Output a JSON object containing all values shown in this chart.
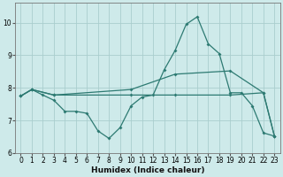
{
  "bg_color": "#ceeaea",
  "line_color": "#2d7a72",
  "grid_color": "#aacece",
  "grid_color_minor": "#c8e4e4",
  "xlabel": "Humidex (Indice chaleur)",
  "xlim": [
    -0.5,
    23.5
  ],
  "ylim": [
    6,
    10.6
  ],
  "yticks": [
    6,
    7,
    8,
    9,
    10
  ],
  "xticks": [
    0,
    1,
    2,
    3,
    4,
    5,
    6,
    7,
    8,
    9,
    10,
    11,
    12,
    13,
    14,
    15,
    16,
    17,
    18,
    19,
    20,
    21,
    22,
    23
  ],
  "line1_x": [
    0,
    1,
    2,
    3,
    4,
    5,
    6,
    7,
    8,
    9,
    10,
    11,
    12,
    13,
    14,
    15,
    16,
    17,
    18,
    19,
    20,
    21,
    22,
    23
  ],
  "line1_y": [
    7.75,
    7.95,
    7.78,
    7.62,
    7.28,
    7.28,
    7.22,
    6.68,
    6.45,
    6.78,
    7.45,
    7.72,
    7.78,
    8.55,
    9.15,
    9.95,
    10.18,
    9.35,
    9.05,
    7.85,
    7.85,
    7.45,
    6.62,
    6.52
  ],
  "line2_x": [
    0,
    1,
    3,
    10,
    14,
    19,
    22,
    23
  ],
  "line2_y": [
    7.75,
    7.95,
    7.78,
    7.95,
    8.42,
    8.52,
    7.85,
    6.52
  ],
  "line3_x": [
    0,
    1,
    3,
    10,
    14,
    19,
    22,
    23
  ],
  "line3_y": [
    7.75,
    7.95,
    7.78,
    7.78,
    7.78,
    7.78,
    7.85,
    6.52
  ]
}
